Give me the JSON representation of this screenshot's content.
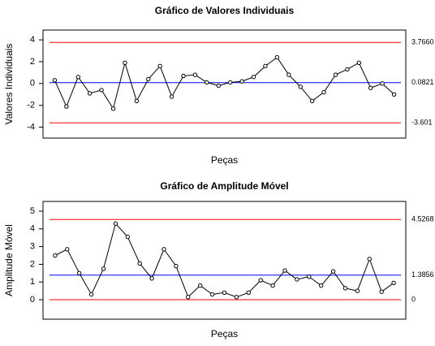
{
  "chart_data": [
    {
      "type": "line",
      "title": "Gráfico de Valores Individuais",
      "x_label": "Peças",
      "y_label": "Valores Individuais",
      "x": [
        1,
        2,
        3,
        4,
        5,
        6,
        7,
        8,
        9,
        10,
        11,
        12,
        13,
        14,
        15,
        16,
        17,
        18,
        19,
        20,
        21,
        22,
        23,
        24,
        25,
        26,
        27,
        28,
        29,
        30
      ],
      "series": [
        {
          "color": "#000000",
          "values": [
            0.3,
            -2.1,
            0.6,
            -0.9,
            -0.6,
            -2.3,
            1.9,
            -1.6,
            0.4,
            1.6,
            -1.2,
            0.7,
            0.8,
            0.1,
            -0.2,
            0.1,
            0.2,
            0.6,
            1.6,
            2.4,
            0.8,
            -0.3,
            -1.6,
            -0.8,
            0.8,
            1.3,
            1.9,
            -0.4,
            0.0,
            -1.0
          ]
        }
      ],
      "xlim": [
        0,
        31
      ],
      "ylim": [
        -5,
        4.9
      ],
      "yticks": [
        -4,
        -2,
        0,
        2,
        4
      ],
      "hlines": [
        {
          "value": 3.766,
          "label": "3.7660",
          "color": "#ff0000"
        },
        {
          "value": 0.0821,
          "label": "0.0821",
          "color": "#0000ff"
        },
        {
          "value": -3.601,
          "label": "-3.601",
          "color": "#ff0000"
        }
      ]
    },
    {
      "type": "line",
      "title": "Gráfico de Amplitude Móvel",
      "x_label": "Peças",
      "y_label": "Amplitude Móvel",
      "x": [
        1,
        2,
        3,
        4,
        5,
        6,
        7,
        8,
        9,
        10,
        11,
        12,
        13,
        14,
        15,
        16,
        17,
        18,
        19,
        20,
        21,
        22,
        23,
        24,
        25,
        26,
        27,
        28,
        29
      ],
      "series": [
        {
          "color": "#000000",
          "values": [
            2.5,
            2.85,
            1.5,
            0.3,
            1.75,
            4.3,
            3.55,
            2.05,
            1.2,
            2.85,
            1.9,
            0.15,
            0.8,
            0.3,
            0.4,
            0.15,
            0.4,
            1.1,
            0.8,
            1.65,
            1.15,
            1.3,
            0.8,
            1.6,
            0.65,
            0.5,
            2.3,
            0.45,
            0.95
          ]
        }
      ],
      "xlim": [
        0,
        30
      ],
      "ylim": [
        -1.1,
        5.55
      ],
      "yticks": [
        0,
        1,
        2,
        3,
        4,
        5
      ],
      "hlines": [
        {
          "value": 4.5268,
          "label": "4.5268",
          "color": "#ff0000"
        },
        {
          "value": 1.3856,
          "label": "1.3856",
          "color": "#0000ff"
        },
        {
          "value": 0,
          "label": "0",
          "color": "#ff0000"
        }
      ]
    }
  ]
}
